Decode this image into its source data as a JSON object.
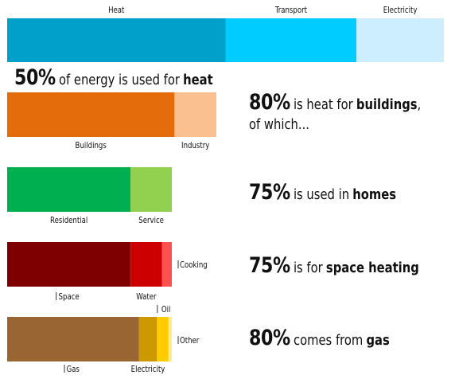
{
  "chart_data": {
    "type": "bar",
    "orientation": "horizontal-stacked",
    "rows": [
      {
        "name": "energy-use",
        "segments": [
          {
            "label": "Heat",
            "value": 50,
            "color": "#00A0CB"
          },
          {
            "label": "Transport",
            "value": 30,
            "color": "#00CCFF"
          },
          {
            "label": "Electricity",
            "value": 20,
            "color": "#CCEEFF"
          }
        ]
      },
      {
        "name": "heat-use",
        "segments": [
          {
            "label": "Buildings",
            "value": 80,
            "color": "#E46C0A"
          },
          {
            "label": "Industry",
            "value": 20,
            "color": "#FAC090"
          }
        ]
      },
      {
        "name": "buildings-use",
        "segments": [
          {
            "label": "Residential",
            "value": 75,
            "color": "#00B050"
          },
          {
            "label": "Service",
            "value": 25,
            "color": "#92D050"
          }
        ]
      },
      {
        "name": "homes-use",
        "segments": [
          {
            "label": "Space",
            "value": 75,
            "color": "#7F0000"
          },
          {
            "label": "Water",
            "value": 19,
            "color": "#CC0000"
          },
          {
            "label": "Cooking",
            "value": 6,
            "color": "#FF5050"
          }
        ]
      },
      {
        "name": "space-heating-source",
        "segments": [
          {
            "label": "Gas",
            "value": 80,
            "color": "#996633"
          },
          {
            "label": "Electricity",
            "value": 11,
            "color": "#CC9900"
          },
          {
            "label": "Oil",
            "value": 7,
            "color": "#FFCC00"
          },
          {
            "label": "Other",
            "value": 2,
            "color": "#FFEE88"
          }
        ]
      }
    ]
  },
  "narrative": {
    "heat_pct": "50%",
    "heat_text": "of energy is used for",
    "heat_word": "heat",
    "buildings_pct": "80%",
    "buildings_text": "is heat for",
    "buildings_word": "buildings",
    "buildings_tail": ",",
    "buildings_line2": "of which...",
    "homes_pct": "75%",
    "homes_text": "is used in",
    "homes_word": "homes",
    "space_pct": "75%",
    "space_text": "is for",
    "space_word": "space heating",
    "gas_pct": "80%",
    "gas_text": "comes from",
    "gas_word": "gas"
  }
}
